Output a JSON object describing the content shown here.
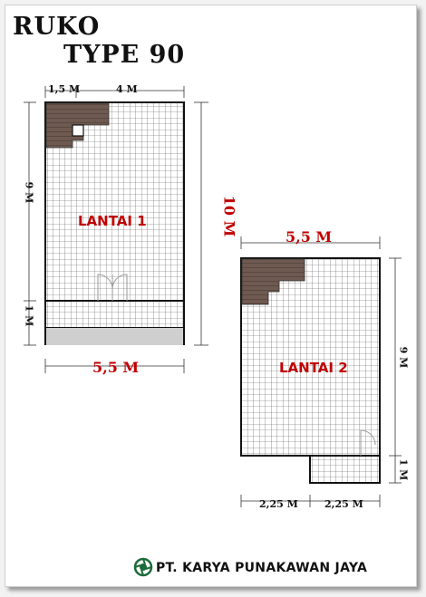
{
  "title": {
    "line1": "RUKO",
    "line2": "TYPE 90"
  },
  "floor1": {
    "label": "LANTAI 1",
    "dim_top_left": "1,5 M",
    "dim_top_right": "4 M",
    "dim_left_main": "9 M",
    "dim_left_front": "1 M",
    "dim_bottom": "5,5 M",
    "dim_total_depth": "10 M"
  },
  "floor2": {
    "label": "LANTAI 2",
    "dim_top": "5,5 M",
    "dim_right_main": "9 M",
    "dim_right_front": "1 M",
    "dim_bottom_left": "2,25 M",
    "dim_bottom_right": "2,25 M"
  },
  "company": {
    "name": "PT. KARYA PUNAKAWAN JAYA",
    "logo_icon": "company-logo-icon"
  },
  "colors": {
    "label_red": "#c00000",
    "stair_brown": "#6e5a50",
    "grid_line": "#555555",
    "terrace_gray": "#cfcfcf"
  }
}
